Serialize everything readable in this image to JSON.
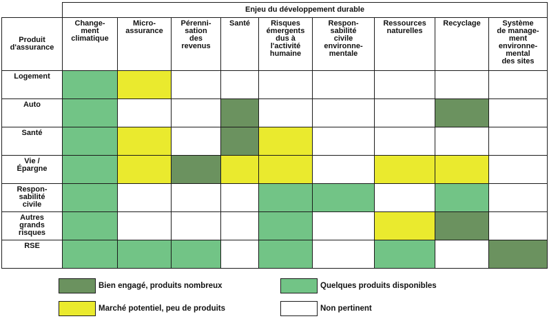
{
  "table": {
    "group_header": "Enjeu du développement durable",
    "corner_label": "Produit\nd'assurance",
    "columns": [
      "Change-\nment\nclimatique",
      "Micro-\nassurance",
      "Pérenni-\nsation\ndes\nrevenus",
      "Santé",
      "Risques\némergents\ndus à\nl'activité\nhumaine",
      "Respon-\nsabilité\ncivile\nenvironne-\nmentale",
      "Ressources\nnaturelles",
      "Recyclage",
      "Système\nde manage-\nment\nenvironne-\nmental\ndes sites"
    ],
    "rows": [
      {
        "label": "Logement",
        "cells": [
          "light",
          "yellow",
          "none",
          "none",
          "none",
          "none",
          "none",
          "none",
          "none"
        ]
      },
      {
        "label": "Auto",
        "cells": [
          "light",
          "none",
          "none",
          "dark",
          "none",
          "none",
          "none",
          "dark",
          "none"
        ]
      },
      {
        "label": "Santé",
        "cells": [
          "light",
          "yellow",
          "none",
          "dark",
          "yellow",
          "none",
          "none",
          "none",
          "none"
        ]
      },
      {
        "label": "Vie /\nÉpargne",
        "cells": [
          "light",
          "yellow",
          "dark",
          "yellow",
          "yellow",
          "none",
          "yellow",
          "yellow",
          "none"
        ]
      },
      {
        "label": "Respon-\nsabilité\ncivile",
        "cells": [
          "light",
          "none",
          "none",
          "none",
          "light",
          "light",
          "none",
          "light",
          "none"
        ]
      },
      {
        "label": "Autres\ngrands\nrisques",
        "cells": [
          "light",
          "none",
          "none",
          "none",
          "light",
          "none",
          "yellow",
          "dark",
          "none"
        ]
      },
      {
        "label": "RSE",
        "cells": [
          "light",
          "light",
          "light",
          "none",
          "light",
          "none",
          "light",
          "none",
          "dark"
        ]
      }
    ]
  },
  "legend": [
    {
      "key": "dark",
      "label": "Bien engagé, produits nombreux",
      "color": "#6b925f"
    },
    {
      "key": "light",
      "label": "Quelques produits disponibles",
      "color": "#72c486"
    },
    {
      "key": "yellow",
      "label": "Marché potentiel, peu de produits",
      "color": "#eaea2e"
    },
    {
      "key": "none",
      "label": "Non pertinent",
      "color": "#ffffff"
    }
  ]
}
